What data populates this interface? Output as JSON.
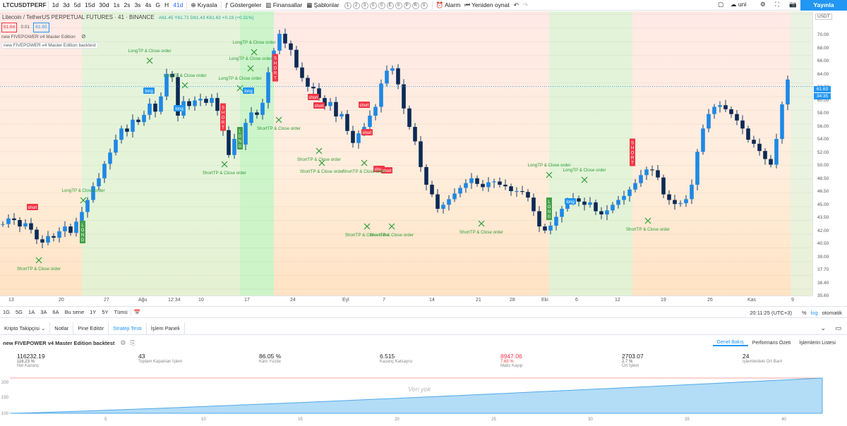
{
  "toolbar": {
    "symbol": "LTCUSDTPERF",
    "intervals": [
      "1d",
      "3d",
      "5d",
      "15d",
      "30d",
      "1s",
      "2s",
      "3s",
      "4s",
      "G",
      "H",
      "41d"
    ],
    "compare": "Kıyasla",
    "indicators": "Göstergeler",
    "financials": "Finansallar",
    "templates": "Şablonlar",
    "template_icons": [
      "1",
      "2",
      "3",
      "0",
      "0",
      "E",
      "0",
      "P",
      "R",
      "0"
    ],
    "alert": "Alarm",
    "replay": "Yeniden oynat",
    "user": "uni",
    "publish": "Yayınla"
  },
  "chart": {
    "title": "Litecoin / TetherUS PERPETUAL FUTURES · 41 · BINANCE",
    "ohlc": "A61.45 Y61.71 D61.43 K61.63 +0.19 (+0.31%)",
    "bid": "61.64",
    "spread": "0.01",
    "ask": "61.65",
    "indicator_1": "new FIVEPOWER v4 Master Edition",
    "indicator_2": "new FIVEPOWER v4 Master Edition backtest",
    "currency": "USDT",
    "last_price": "61.63",
    "countdown": "34:35",
    "price_ticks": [
      "70.00",
      "68.00",
      "66.00",
      "64.00",
      "62.00",
      "60.00",
      "58.00",
      "56.00",
      "54.00",
      "52.00",
      "50.00",
      "48.50",
      "46.50",
      "45.00",
      "43.50",
      "42.00",
      "40.50",
      "39.00",
      "37.70",
      "36.40",
      "35.60"
    ],
    "time_ticks": [
      "13",
      "20",
      "27",
      "Ağu",
      "12:34",
      "10",
      "17",
      "24",
      "Eyl",
      "7",
      "14",
      "21",
      "28",
      "Eki",
      "6",
      "12",
      "19",
      "26",
      "Kas",
      "9"
    ],
    "signals": [
      {
        "text": "long"
      },
      {
        "text": "long"
      },
      {
        "text": "long"
      },
      {
        "text": "long"
      },
      {
        "text": "short"
      },
      {
        "text": "short"
      },
      {
        "text": "short"
      },
      {
        "text": "short"
      },
      {
        "text": "short"
      },
      {
        "text": "short"
      },
      {
        "text": "short"
      },
      {
        "text": "LongTP & Close order"
      },
      {
        "text": "LongTP & Close order"
      },
      {
        "text": "LongTP & Close order"
      },
      {
        "text": "LongTP & Close order"
      },
      {
        "text": "LongTP & Close order"
      },
      {
        "text": "LongTP & Close order"
      },
      {
        "text": "LongTP & Close order"
      },
      {
        "text": "LongTP & Close order"
      },
      {
        "text": "ShortTP & Close order"
      },
      {
        "text": "ShortTP & Close order"
      },
      {
        "text": "ShortTP & Close order"
      },
      {
        "text": "ShortTP & Close order"
      },
      {
        "text": "ShortTP & Close order"
      },
      {
        "text": "ShortTP & Close order"
      },
      {
        "text": "ShortTP & Close order"
      },
      {
        "text": "ShortTP & Close order"
      },
      {
        "text": "ShortTP & Close order"
      },
      {
        "text": "ShortTP & Close order"
      }
    ],
    "vertical_labels": [
      "LONG",
      "SHORT",
      "LONG",
      "SHORT",
      "LONG",
      "SHORT"
    ]
  },
  "range_bar": {
    "ranges": [
      "1G",
      "5G",
      "1A",
      "3A",
      "6A",
      "Bu sene",
      "1Y",
      "5Y",
      "Tümü"
    ],
    "clock": "20:11:25 (UTC+3)",
    "percent": "%",
    "log": "log",
    "auto": "otomatik"
  },
  "panel": {
    "tabs": [
      "Kripto Takipçisi",
      "Notlar",
      "Pine Editör",
      "Strateji Testi",
      "İşlem Paneli"
    ],
    "active_tab": 3,
    "strategy_title": "new FIVEPOWER v4 Master Edition backtest",
    "subtabs": [
      "Genel Bakış",
      "Performans Özeti",
      "İşlemlerin Listesi"
    ]
  },
  "stats": [
    {
      "value": "116232.19",
      "sub": "116.23 %",
      "label": "Net Kazanç",
      "red": false
    },
    {
      "value": "43",
      "sub": "",
      "label": "Toplam Kapatılan İşlem",
      "red": false
    },
    {
      "value": "86.05 %",
      "sub": "",
      "label": "Kârlı Yüzde",
      "red": false
    },
    {
      "value": "6.515",
      "sub": "",
      "label": "Kazanç Katsayısı",
      "red": false
    },
    {
      "value": "8947.06",
      "sub": "7.65 %",
      "label": "Maks Kayıp",
      "red": true
    },
    {
      "value": "2703.07",
      "sub": "2.7 %",
      "label": "Ort İşlem",
      "red": false
    },
    {
      "value": "24",
      "sub": "",
      "label": "İşlemlerdeki Ort Bar#",
      "red": false
    }
  ],
  "equity": {
    "no_data": "Veri yok",
    "y_ticks": [
      "200",
      "150",
      "100"
    ],
    "x_ticks": [
      "5",
      "10",
      "15",
      "20",
      "25",
      "30",
      "35",
      "40"
    ]
  },
  "chart_data": {
    "type": "candlestick",
    "ylim": [
      35.6,
      71.0
    ],
    "closes": [
      44.5,
      45.2,
      45.0,
      44.2,
      44.6,
      43.8,
      42.6,
      42.2,
      43.0,
      42.8,
      43.6,
      44.2,
      43.4,
      44.8,
      46.0,
      47.5,
      49.2,
      50.2,
      52.0,
      53.4,
      55.0,
      56.4,
      56.0,
      57.5,
      57.2,
      58.1,
      59.5,
      58.5,
      60.4,
      63.2,
      62.8,
      58.0,
      59.8,
      59.2,
      59.9,
      60.1,
      59.6,
      60.2,
      58.6,
      56.2,
      53.1,
      55.1,
      54.4,
      57.1,
      58.4,
      58.1,
      59.6,
      63.4,
      66.1,
      68.2,
      67.0,
      66.2,
      64.0,
      62.7,
      61.6,
      61.4,
      60.2,
      59.2,
      59.7,
      57.9,
      58.2,
      56.1,
      54.6,
      55.8,
      56.6,
      58.0,
      59.1,
      62.0,
      63.6,
      63.9,
      61.9,
      58.9,
      56.6,
      54.8,
      51.6,
      49.4,
      48.2,
      46.4,
      46.9,
      47.6,
      48.3,
      49.0,
      49.6,
      50.2,
      49.5,
      49.1,
      49.7,
      49.8,
      49.4,
      49.2,
      48.6,
      48.6,
      48.5,
      47.8,
      46.1,
      44.2,
      43.7,
      44.3,
      45.4,
      46.4,
      47.3,
      47.7,
      47.3,
      46.9,
      47.2,
      46.1,
      45.7,
      46.2,
      46.9,
      47.5,
      48.0,
      48.8,
      49.6,
      50.6,
      51.3,
      51.2,
      50.3,
      48.2,
      47.5,
      47.0,
      47.1,
      47.6,
      49.4,
      53.5,
      56.4,
      58.2,
      59.1,
      59.3,
      58.8,
      58.2,
      57.4,
      56.4,
      55.0,
      54.5,
      53.6,
      52.6,
      51.9,
      55.1,
      59.4,
      62.5
    ]
  }
}
